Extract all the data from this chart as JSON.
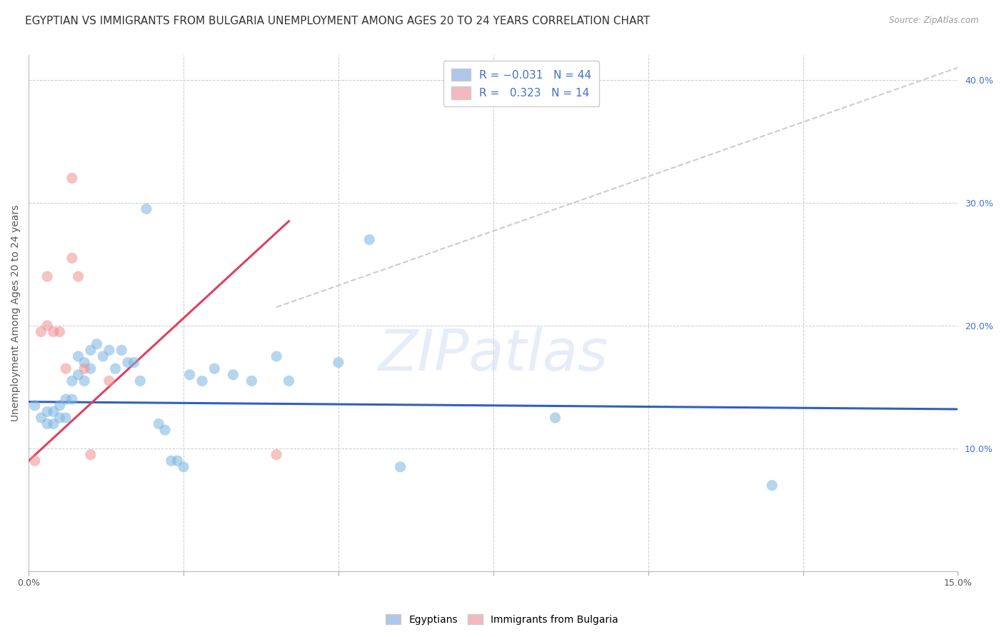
{
  "title": "EGYPTIAN VS IMMIGRANTS FROM BULGARIA UNEMPLOYMENT AMONG AGES 20 TO 24 YEARS CORRELATION CHART",
  "source": "Source: ZipAtlas.com",
  "ylabel": "Unemployment Among Ages 20 to 24 years",
  "xlim": [
    0.0,
    0.15
  ],
  "ylim": [
    0.0,
    0.42
  ],
  "xticks": [
    0.0,
    0.025,
    0.05,
    0.075,
    0.1,
    0.125,
    0.15
  ],
  "xtick_labels": [
    "0.0%",
    "",
    "",
    "",
    "",
    "",
    "15.0%"
  ],
  "yticks_right": [
    0.0,
    0.1,
    0.2,
    0.3,
    0.4
  ],
  "ytick_labels_right": [
    "",
    "10.0%",
    "20.0%",
    "30.0%",
    "40.0%"
  ],
  "watermark": "ZIPatlas",
  "egyptians_scatter": [
    [
      0.001,
      0.135
    ],
    [
      0.002,
      0.125
    ],
    [
      0.003,
      0.13
    ],
    [
      0.003,
      0.12
    ],
    [
      0.004,
      0.12
    ],
    [
      0.004,
      0.13
    ],
    [
      0.005,
      0.135
    ],
    [
      0.005,
      0.125
    ],
    [
      0.006,
      0.14
    ],
    [
      0.006,
      0.125
    ],
    [
      0.007,
      0.155
    ],
    [
      0.007,
      0.14
    ],
    [
      0.008,
      0.175
    ],
    [
      0.008,
      0.16
    ],
    [
      0.009,
      0.17
    ],
    [
      0.009,
      0.155
    ],
    [
      0.01,
      0.18
    ],
    [
      0.01,
      0.165
    ],
    [
      0.011,
      0.185
    ],
    [
      0.012,
      0.175
    ],
    [
      0.013,
      0.18
    ],
    [
      0.014,
      0.165
    ],
    [
      0.015,
      0.18
    ],
    [
      0.016,
      0.17
    ],
    [
      0.017,
      0.17
    ],
    [
      0.018,
      0.155
    ],
    [
      0.019,
      0.295
    ],
    [
      0.021,
      0.12
    ],
    [
      0.022,
      0.115
    ],
    [
      0.023,
      0.09
    ],
    [
      0.024,
      0.09
    ],
    [
      0.025,
      0.085
    ],
    [
      0.026,
      0.16
    ],
    [
      0.028,
      0.155
    ],
    [
      0.03,
      0.165
    ],
    [
      0.033,
      0.16
    ],
    [
      0.036,
      0.155
    ],
    [
      0.04,
      0.175
    ],
    [
      0.042,
      0.155
    ],
    [
      0.05,
      0.17
    ],
    [
      0.055,
      0.27
    ],
    [
      0.06,
      0.085
    ],
    [
      0.085,
      0.125
    ],
    [
      0.12,
      0.07
    ]
  ],
  "bulgaria_scatter": [
    [
      0.001,
      0.09
    ],
    [
      0.002,
      0.195
    ],
    [
      0.003,
      0.2
    ],
    [
      0.003,
      0.24
    ],
    [
      0.004,
      0.195
    ],
    [
      0.005,
      0.195
    ],
    [
      0.006,
      0.165
    ],
    [
      0.007,
      0.255
    ],
    [
      0.007,
      0.32
    ],
    [
      0.008,
      0.24
    ],
    [
      0.009,
      0.165
    ],
    [
      0.01,
      0.095
    ],
    [
      0.013,
      0.155
    ],
    [
      0.04,
      0.095
    ]
  ],
  "blue_line_x": [
    0.0,
    0.15
  ],
  "blue_line_y": [
    0.138,
    0.132
  ],
  "pink_line_x": [
    0.0,
    0.042
  ],
  "pink_line_y": [
    0.09,
    0.285
  ],
  "grey_dash_line_x": [
    0.04,
    0.15
  ],
  "grey_dash_line_y": [
    0.215,
    0.41
  ],
  "bg_color": "#ffffff",
  "grid_color": "#cccccc",
  "scatter_blue": "#7ab3e0",
  "scatter_pink": "#f09090",
  "scatter_alpha": 0.55,
  "scatter_size": 120,
  "title_fontsize": 11,
  "axis_label_fontsize": 10,
  "tick_fontsize": 9,
  "blue_line_color": "#3060c0",
  "pink_line_color": "#e04060",
  "grey_dash_color": "#cccccc",
  "legend_blue_color": "#aec6e8",
  "legend_pink_color": "#f4b8c1"
}
